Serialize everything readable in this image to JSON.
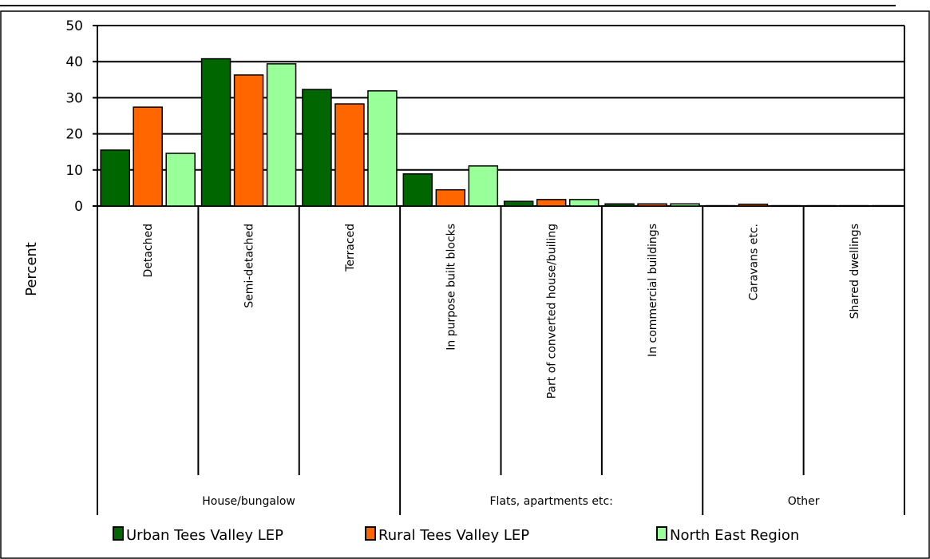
{
  "chart_data": {
    "type": "bar",
    "ylabel": "Percent",
    "ylim": [
      0,
      50
    ],
    "yticks": [
      0,
      10,
      20,
      30,
      40,
      50
    ],
    "grid": true,
    "legend_position": "bottom",
    "categories": [
      "Detached",
      "Semi-detached",
      "Terraced",
      "In purpose built blocks",
      "Part of converted house/builing",
      "In commercial buildings",
      "Caravans etc.",
      "Shared dwellings"
    ],
    "groups": [
      {
        "label": "House/bungalow",
        "start": 0,
        "end": 3
      },
      {
        "label": "Flats, apartments etc:",
        "start": 3,
        "end": 6
      },
      {
        "label": "Other",
        "start": 6,
        "end": 8
      }
    ],
    "series": [
      {
        "name": "Urban Tees Valley LEP",
        "color": "#006600",
        "values": [
          15.5,
          40.8,
          32.3,
          8.9,
          1.3,
          0.6,
          0.1,
          0.1
        ]
      },
      {
        "name": "Rural Tees Valley LEP",
        "color": "#ff6600",
        "values": [
          27.4,
          36.3,
          28.3,
          4.5,
          1.8,
          0.6,
          0.5,
          0.1
        ]
      },
      {
        "name": "North East Region",
        "color": "#99ff99",
        "values": [
          14.6,
          39.4,
          31.9,
          11.1,
          1.8,
          0.6,
          0.1,
          0.1
        ]
      }
    ]
  }
}
